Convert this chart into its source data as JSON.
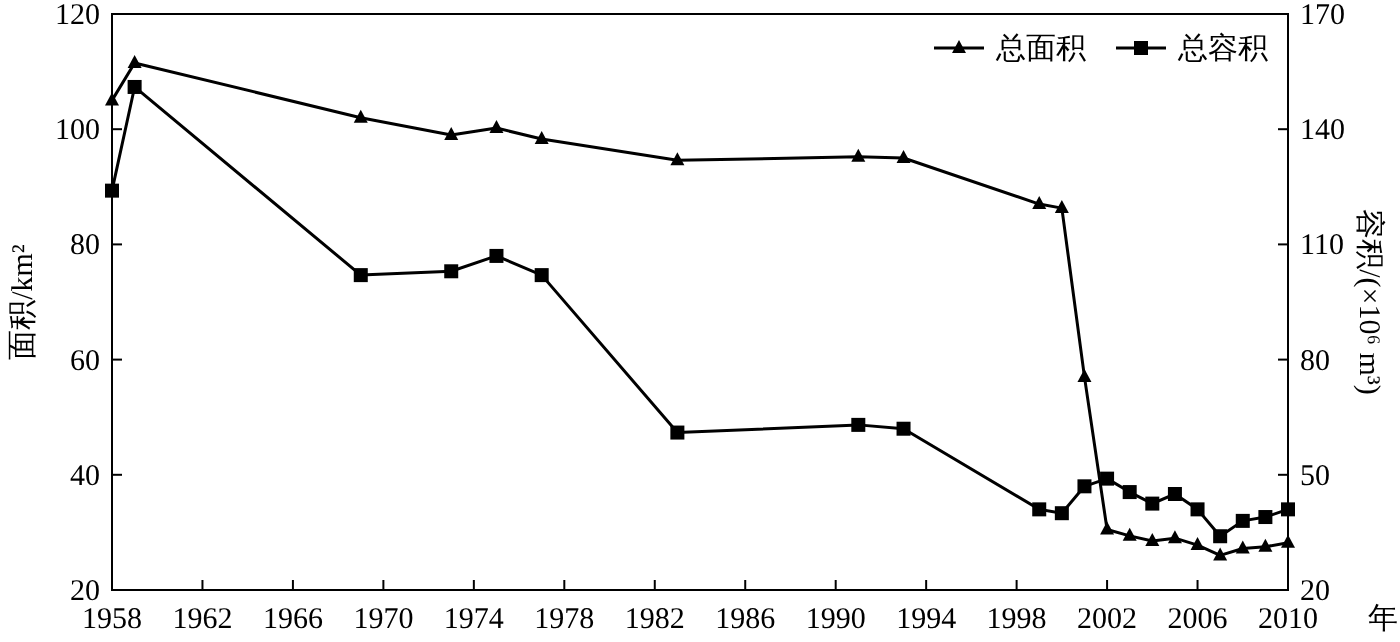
{
  "chart_data": {
    "type": "line",
    "xlabel": "年",
    "ylabel": "面积/km²",
    "y2label": "容积/(×10⁶ m³)",
    "x": [
      1958,
      1959,
      1969,
      1973,
      1975,
      1977,
      1983,
      1991,
      1993,
      1999,
      2000,
      2001,
      2002,
      2003,
      2004,
      2005,
      2006,
      2007,
      2008,
      2009,
      2010
    ],
    "series": [
      {
        "name": "总面积",
        "color": "#000000",
        "marker": "triangle",
        "values": [
          105,
          111.5,
          102,
          99,
          100.2,
          98.3,
          94.6,
          95.2,
          95,
          87,
          86.3,
          57,
          30.5,
          29.4,
          28.5,
          29,
          27.8,
          26,
          27.2,
          27.5,
          28.2
        ]
      },
      {
        "name": "总容积",
        "color": "#000000",
        "marker": "square",
        "axis": "y2",
        "values": [
          124,
          151,
          102,
          103,
          107,
          102,
          61,
          63,
          62,
          41,
          40,
          47,
          49,
          45.5,
          42.5,
          45,
          41,
          34,
          38,
          39,
          41
        ]
      }
    ],
    "xlim": [
      1958,
      2010
    ],
    "xticks": [
      1958,
      1962,
      1966,
      1970,
      1974,
      1978,
      1982,
      1986,
      1990,
      1994,
      1998,
      2002,
      2006,
      2010
    ],
    "ylim": [
      20,
      120
    ],
    "yticks": [
      20,
      40,
      60,
      80,
      100,
      120
    ],
    "y2lim": [
      20,
      170
    ],
    "y2ticks": [
      20,
      50,
      80,
      110,
      140,
      170
    ],
    "legend": "top right"
  }
}
